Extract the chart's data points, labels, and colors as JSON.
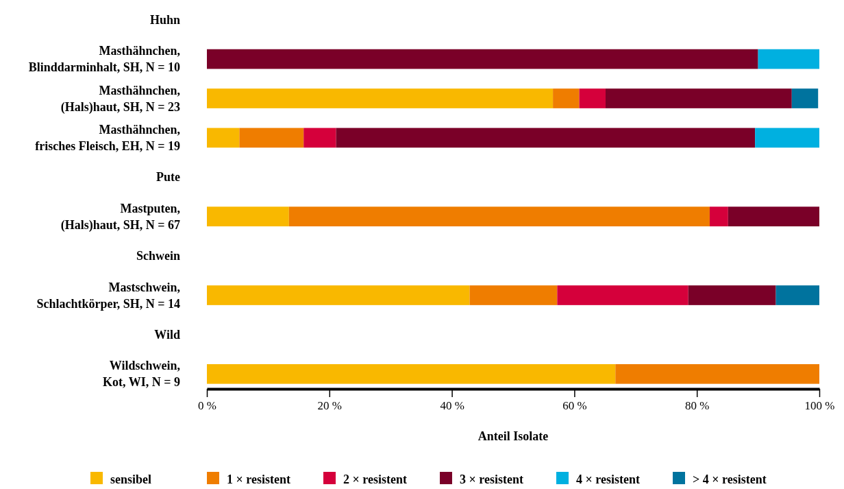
{
  "chart_data": {
    "type": "bar",
    "orientation": "horizontal",
    "stacked": true,
    "xlabel": "Anteil Isolate",
    "categories": [
      "Huhn",
      "Masthähnchen, Blinddarminhalt, SH, N = 10",
      "Masthähnchen, (Hals)haut, SH, N = 23",
      "Masthähnchen, frisches Fleisch, EH, N = 19",
      "Pute",
      "Mastputen, (Hals)haut, SH, N = 67",
      "Schwein",
      "Mastschwein, Schlachtkörper, SH, N = 14",
      "Wild",
      "Wildschwein, Kot, WI, N = 9"
    ],
    "series": [
      {
        "name": "sensibel",
        "color": "#f9b800",
        "values": [
          null,
          0,
          56.5,
          5.3,
          null,
          13.4,
          null,
          42.9,
          null,
          66.7
        ]
      },
      {
        "name": "1 × resistent",
        "color": "#ef7d00",
        "values": [
          null,
          0,
          4.3,
          10.5,
          null,
          68.7,
          null,
          14.3,
          null,
          33.3
        ]
      },
      {
        "name": "2 × resistent",
        "color": "#d5003b",
        "values": [
          null,
          0,
          4.3,
          5.3,
          null,
          3.0,
          null,
          21.4,
          null,
          0
        ]
      },
      {
        "name": "3 × resistent",
        "color": "#7a0028",
        "values": [
          null,
          90,
          30.4,
          68.4,
          null,
          14.9,
          null,
          14.3,
          null,
          0
        ]
      },
      {
        "name": "4 × resistent",
        "color": "#00b0e0",
        "values": [
          null,
          10,
          0,
          10.5,
          null,
          0,
          null,
          0,
          null,
          0
        ]
      },
      {
        "name": "> 4 × resistent",
        "color": "#00739e",
        "values": [
          null,
          0,
          4.3,
          0,
          null,
          0,
          null,
          7.1,
          null,
          0
        ]
      }
    ],
    "xlim": [
      0,
      100
    ],
    "xticks": [
      {
        "value": 0,
        "label": "0 %"
      },
      {
        "value": 20,
        "label": "20 %"
      },
      {
        "value": 40,
        "label": "40 %"
      },
      {
        "value": 60,
        "label": "60 %"
      },
      {
        "value": 80,
        "label": "80 %"
      },
      {
        "value": 100,
        "label": "100 %"
      }
    ],
    "grid": false,
    "legend": "bottom"
  }
}
